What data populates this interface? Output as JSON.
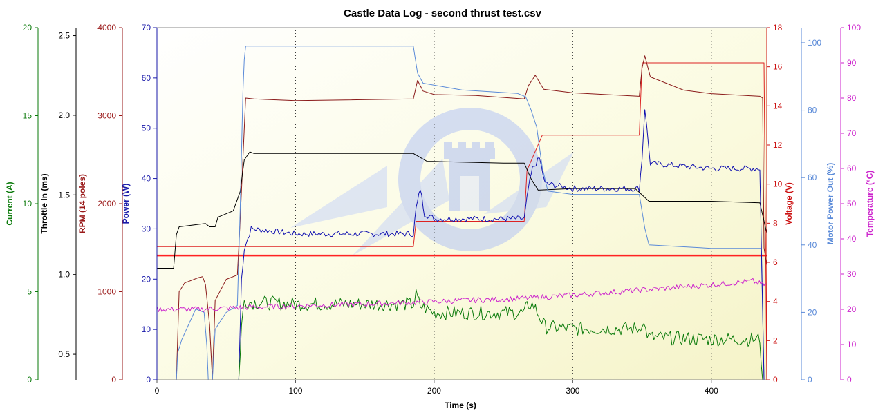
{
  "chart_data": {
    "type": "line",
    "title": "Castle Data Log - second thrust test.csv",
    "xlabel": "Time (s)",
    "xlim": [
      0,
      440
    ],
    "x_ticks": [
      0,
      100,
      200,
      300,
      400
    ],
    "grid": "vertical dotted at x ticks",
    "background": "yellow gradient",
    "axes": [
      {
        "key": "current",
        "label": "Current (A)",
        "side": "left",
        "color": "#0a7a0a",
        "min": 0,
        "max": 20,
        "ticks": [
          0,
          5,
          10,
          15,
          20
        ]
      },
      {
        "key": "throttle",
        "label": "Throttle In (ms)",
        "side": "left",
        "color": "#000000",
        "min": 0.34,
        "max": 2.55,
        "ticks": [
          0.5,
          1.0,
          1.5,
          2.0,
          2.5
        ]
      },
      {
        "key": "rpm",
        "label": "RPM (14 poles)",
        "side": "left",
        "color": "#9a1a1a",
        "min": 0,
        "max": 4000,
        "ticks": [
          0,
          1000,
          2000,
          3000,
          4000
        ]
      },
      {
        "key": "power",
        "label": "Power (W)",
        "side": "left",
        "color": "#1a1aaa",
        "min": 0,
        "max": 70,
        "ticks": [
          0,
          10,
          20,
          30,
          40,
          50,
          60,
          70
        ]
      },
      {
        "key": "voltage",
        "label": "Voltage (V)",
        "side": "right",
        "color": "#cc1111",
        "min": 0,
        "max": 18,
        "ticks": [
          0,
          2,
          4,
          6,
          8,
          10,
          12,
          14,
          16,
          18
        ]
      },
      {
        "key": "motor_out",
        "label": "Motor Power Out (%)",
        "side": "right",
        "color": "#5a8ad8",
        "min": 0,
        "max": 104.5,
        "ticks": [
          0,
          20,
          40,
          60,
          80,
          100
        ]
      },
      {
        "key": "temperature",
        "label": "Temperature (°C)",
        "side": "right",
        "color": "#cc22cc",
        "min": 0,
        "max": 100,
        "ticks": [
          0,
          10,
          20,
          30,
          40,
          50,
          60,
          70,
          80,
          90,
          100
        ]
      }
    ],
    "series": [
      {
        "axis": "voltage",
        "color": "#dd2222",
        "width": 1,
        "points": [
          [
            0,
            6.8
          ],
          [
            185,
            6.8
          ],
          [
            187,
            8.1
          ],
          [
            265,
            8.1
          ],
          [
            267,
            10.7
          ],
          [
            278,
            12.5
          ],
          [
            348,
            12.5
          ],
          [
            350,
            16.2
          ],
          [
            438,
            16.2
          ],
          [
            440,
            0
          ]
        ]
      },
      {
        "axis": "voltage",
        "color": "#ff2222",
        "width": 2.5,
        "points": [
          [
            0,
            6.35
          ],
          [
            440,
            6.35
          ]
        ]
      },
      {
        "axis": "rpm",
        "color": "#8a1a1a",
        "width": 1,
        "points": [
          [
            0,
            0
          ],
          [
            14,
            0
          ],
          [
            16,
            1000
          ],
          [
            20,
            1100
          ],
          [
            30,
            1160
          ],
          [
            33,
            1170
          ],
          [
            35,
            1080
          ],
          [
            38,
            620
          ],
          [
            40,
            0
          ],
          [
            42,
            900
          ],
          [
            50,
            1140
          ],
          [
            58,
            1190
          ],
          [
            60,
            1800
          ],
          [
            62,
            2500
          ],
          [
            64,
            3200
          ],
          [
            70,
            3190
          ],
          [
            100,
            3170
          ],
          [
            185,
            3190
          ],
          [
            188,
            3400
          ],
          [
            192,
            3280
          ],
          [
            200,
            3240
          ],
          [
            230,
            3230
          ],
          [
            265,
            3190
          ],
          [
            268,
            3340
          ],
          [
            273,
            3460
          ],
          [
            279,
            3300
          ],
          [
            300,
            3260
          ],
          [
            348,
            3220
          ],
          [
            350,
            3540
          ],
          [
            352,
            3680
          ],
          [
            356,
            3440
          ],
          [
            380,
            3290
          ],
          [
            400,
            3250
          ],
          [
            435,
            3220
          ],
          [
            437,
            3200
          ],
          [
            438,
            1500
          ],
          [
            440,
            1300
          ]
        ]
      },
      {
        "axis": "throttle",
        "color": "#000000",
        "width": 1,
        "points": [
          [
            0,
            1.04
          ],
          [
            12,
            1.04
          ],
          [
            14,
            1.25
          ],
          [
            16,
            1.3
          ],
          [
            35,
            1.32
          ],
          [
            38,
            1.3
          ],
          [
            42,
            1.3
          ],
          [
            44,
            1.36
          ],
          [
            55,
            1.4
          ],
          [
            60,
            1.52
          ],
          [
            63,
            1.72
          ],
          [
            67,
            1.77
          ],
          [
            70,
            1.76
          ],
          [
            100,
            1.76
          ],
          [
            185,
            1.76
          ],
          [
            195,
            1.71
          ],
          [
            200,
            1.71
          ],
          [
            250,
            1.7
          ],
          [
            265,
            1.7
          ],
          [
            270,
            1.6
          ],
          [
            275,
            1.53
          ],
          [
            300,
            1.54
          ],
          [
            345,
            1.54
          ],
          [
            350,
            1.5
          ],
          [
            355,
            1.46
          ],
          [
            400,
            1.46
          ],
          [
            435,
            1.45
          ],
          [
            440,
            1.26
          ]
        ]
      },
      {
        "axis": "motor_out",
        "color": "#5a8ad8",
        "width": 1,
        "points": [
          [
            0,
            0
          ],
          [
            14,
            0
          ],
          [
            15,
            8
          ],
          [
            18,
            12
          ],
          [
            28,
            21
          ],
          [
            34,
            20
          ],
          [
            36,
            10
          ],
          [
            37,
            0
          ],
          [
            40,
            0
          ],
          [
            42,
            15
          ],
          [
            50,
            20
          ],
          [
            58,
            22
          ],
          [
            60,
            50
          ],
          [
            62,
            85
          ],
          [
            63,
            95
          ],
          [
            64,
            99
          ],
          [
            100,
            99
          ],
          [
            185,
            99
          ],
          [
            188,
            91
          ],
          [
            192,
            88
          ],
          [
            220,
            86
          ],
          [
            260,
            85
          ],
          [
            266,
            84
          ],
          [
            270,
            80
          ],
          [
            274,
            75
          ],
          [
            278,
            63
          ],
          [
            282,
            56
          ],
          [
            300,
            55
          ],
          [
            348,
            55
          ],
          [
            352,
            45
          ],
          [
            355,
            40
          ],
          [
            400,
            39
          ],
          [
            436,
            39
          ],
          [
            437,
            20
          ],
          [
            438,
            0
          ],
          [
            440,
            0
          ]
        ]
      },
      {
        "axis": "power",
        "color": "#1010b0",
        "width": 1,
        "noise": 0.6,
        "points": [
          [
            0,
            0
          ],
          [
            59,
            0
          ],
          [
            61,
            20
          ],
          [
            63,
            26
          ],
          [
            68,
            30
          ],
          [
            100,
            29
          ],
          [
            185,
            29
          ],
          [
            187,
            34
          ],
          [
            190,
            38
          ],
          [
            193,
            33
          ],
          [
            200,
            32
          ],
          [
            265,
            32
          ],
          [
            268,
            38
          ],
          [
            271,
            42
          ],
          [
            276,
            44
          ],
          [
            280,
            39
          ],
          [
            300,
            38
          ],
          [
            348,
            38
          ],
          [
            350,
            44
          ],
          [
            352,
            54
          ],
          [
            356,
            43
          ],
          [
            400,
            42
          ],
          [
            435,
            42
          ],
          [
            438,
            0
          ],
          [
            440,
            0
          ]
        ]
      },
      {
        "axis": "current",
        "color": "#0a7a0a",
        "width": 1,
        "noise": 0.4,
        "points": [
          [
            0,
            0
          ],
          [
            59,
            0
          ],
          [
            61,
            3
          ],
          [
            63,
            4.5
          ],
          [
            67,
            4.4
          ],
          [
            100,
            4.3
          ],
          [
            185,
            4.3
          ],
          [
            187,
            4.8
          ],
          [
            190,
            4.2
          ],
          [
            200,
            3.8
          ],
          [
            265,
            3.8
          ],
          [
            268,
            4.3
          ],
          [
            272,
            4.2
          ],
          [
            280,
            3.0
          ],
          [
            300,
            2.9
          ],
          [
            348,
            2.9
          ],
          [
            350,
            3.3
          ],
          [
            355,
            2.4
          ],
          [
            400,
            2.3
          ],
          [
            435,
            2.3
          ],
          [
            437,
            0
          ],
          [
            440,
            0
          ]
        ]
      },
      {
        "axis": "temperature",
        "color": "#cc22cc",
        "width": 1,
        "noise": 0.8,
        "points": [
          [
            0,
            20
          ],
          [
            30,
            20
          ],
          [
            60,
            20.5
          ],
          [
            100,
            21
          ],
          [
            150,
            21.5
          ],
          [
            190,
            22
          ],
          [
            220,
            22.5
          ],
          [
            260,
            23
          ],
          [
            300,
            24
          ],
          [
            350,
            25.5
          ],
          [
            400,
            27
          ],
          [
            430,
            28
          ],
          [
            437,
            27
          ],
          [
            440,
            27
          ]
        ]
      }
    ]
  }
}
